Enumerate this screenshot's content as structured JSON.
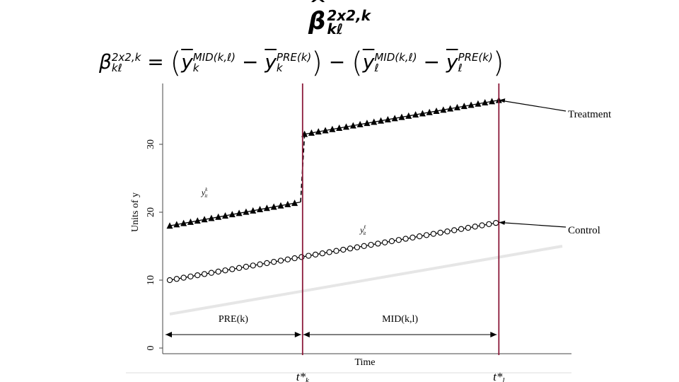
{
  "title": {
    "symbol": "β",
    "sup": "2x2,k",
    "sub": "kℓ"
  },
  "formula": {
    "lhs_symbol": "β",
    "lhs_sup": "2x2,k",
    "lhs_sub": "kℓ",
    "equals": "=",
    "y": "y",
    "sup_mid": "MID(k,ℓ)",
    "sup_pre": "PRE(k)",
    "sub_k": "k",
    "sub_l": "ℓ",
    "minus": "−"
  },
  "chart_data": {
    "type": "line",
    "xlabel": "Time",
    "ylabel": "Units of y",
    "ylim": [
      0,
      40
    ],
    "yticks": [
      0,
      10,
      20,
      30
    ],
    "xlim": [
      1,
      100
    ],
    "series": [
      {
        "name": "Treatment",
        "marker": "triangle",
        "color": "#000000",
        "segments": [
          {
            "x": [
              1,
              34
            ],
            "y": [
              18.0,
              21.5
            ]
          },
          {
            "x": [
              35,
              84
            ],
            "y": [
              31.5,
              36.5
            ]
          }
        ],
        "jump": {
          "x": [
            34,
            35
          ],
          "y": [
            21.5,
            31.5
          ]
        }
      },
      {
        "name": "Control",
        "marker": "circle",
        "color": "#000000",
        "segments": [
          {
            "x": [
              1,
              84
            ],
            "y": [
              10.0,
              18.5
            ]
          }
        ]
      },
      {
        "name": "",
        "marker": "none",
        "color": "#e6e6e6",
        "segments": [
          {
            "x": [
              1,
              100
            ],
            "y": [
              5.0,
              15.0
            ]
          }
        ]
      }
    ],
    "vertical_lines": [
      {
        "x": 34.5,
        "label": "t*",
        "sub": "k",
        "color": "#8b1a3a"
      },
      {
        "x": 84,
        "label": "t*",
        "sub": "l",
        "color": "#8b1a3a"
      }
    ],
    "periods": [
      {
        "label": "PRE(k)",
        "x": [
          1,
          34.5
        ]
      },
      {
        "label": "MID(k,l)",
        "x": [
          34.5,
          84
        ]
      }
    ],
    "series_annotations": [
      {
        "base": "y",
        "sup": "k",
        "sub": "it",
        "x": 9,
        "y": 22.5
      },
      {
        "base": "y",
        "sup": "ℓ",
        "sub": "it",
        "x": 49,
        "y": 17
      }
    ],
    "legend": [
      {
        "label": "Treatment",
        "series": "Treatment",
        "point_x": 84,
        "point_y": 36.5
      },
      {
        "label": "Control",
        "series": "Control",
        "point_x": 84,
        "point_y": 18.5
      }
    ]
  }
}
